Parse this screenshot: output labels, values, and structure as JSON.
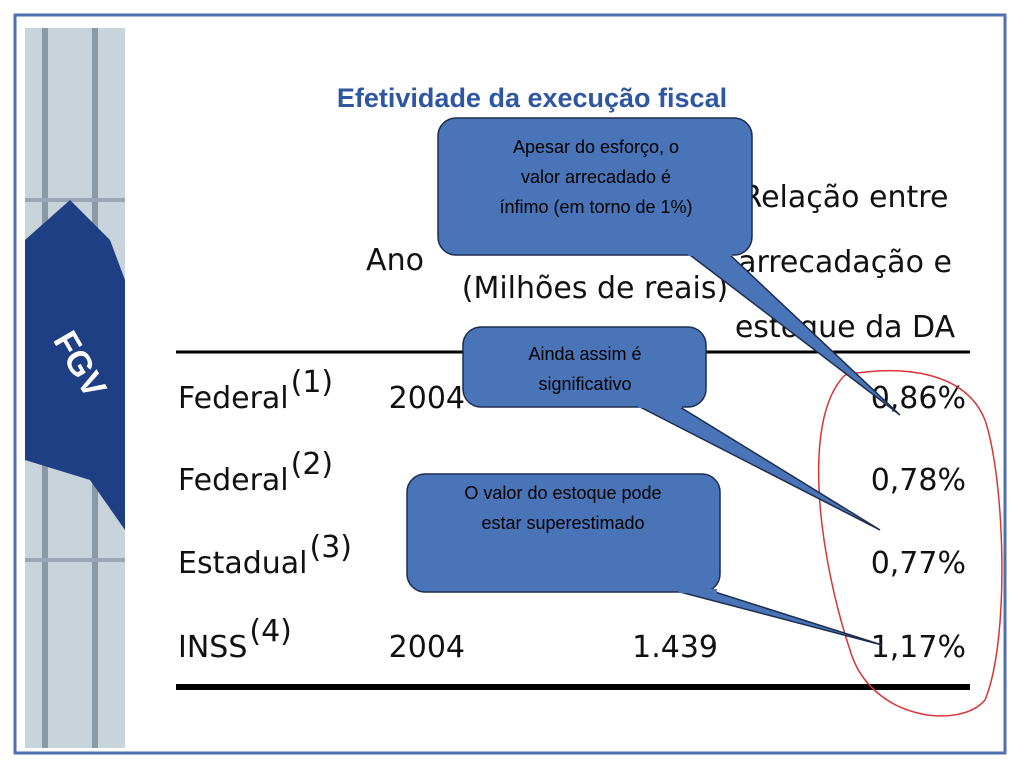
{
  "title": "Efetividade da execução fiscal",
  "logo": "FGV",
  "table": {
    "headers": {
      "year": "Ano",
      "amount": "(Milhões de reais)",
      "ratio": [
        "Relação entre",
        "arrecadação e",
        "estoque da DA"
      ]
    },
    "rows": [
      {
        "label": "Federal",
        "note": "(1)",
        "year": "2004",
        "ratio": "0,86%"
      },
      {
        "label": "Federal",
        "note": "(2)",
        "ratio": "0,78%"
      },
      {
        "label": "Estadual",
        "note": "(3)",
        "ratio": "0,77%"
      },
      {
        "label": "INSS",
        "note": "(4)",
        "year": "2004",
        "amount": "1.439",
        "ratio": "1,17%"
      }
    ]
  },
  "callouts": [
    {
      "lines": [
        "Apesar do esforço, o",
        "valor arrecadado é",
        "ínfimo (em torno de 1%)"
      ]
    },
    {
      "lines": [
        "Ainda assim é",
        "significativo"
      ]
    },
    {
      "lines": [
        "O valor do estoque pode",
        "estar superestimado"
      ]
    }
  ]
}
